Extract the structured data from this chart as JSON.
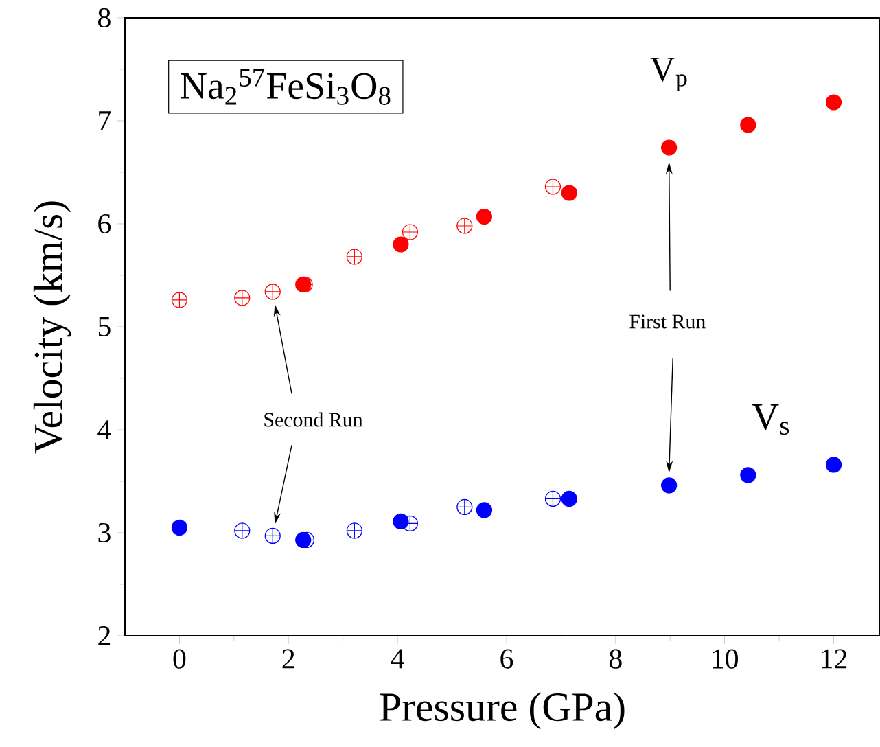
{
  "chart_data": {
    "type": "scatter",
    "title": "Na$_{2}$$^{57}$FeSi$_{3}$O$_{8}$",
    "xlabel": "Pressure (GPa)",
    "ylabel": "Velocity (km/s)",
    "xlim": [
      -1,
      12.85
    ],
    "ylim": [
      2,
      8
    ],
    "xticks": [
      0,
      2,
      4,
      6,
      8,
      10,
      12
    ],
    "yticks": [
      2,
      3,
      4,
      5,
      6,
      7,
      8
    ],
    "annotations": [
      "V$_{p}$",
      "V$_{s}$",
      "First Run",
      "Second Run"
    ],
    "series": [
      {
        "color": "#ff0000",
        "marker": "circle",
        "x": [
          2.27,
          4.06,
          5.59,
          7.15,
          8.98,
          10.43,
          12.0
        ],
        "values": [
          5.41,
          5.8,
          6.07,
          6.3,
          6.74,
          6.96,
          7.18
        ]
      },
      {
        "color": "#ff0000",
        "marker": "cross",
        "x": [
          0,
          1.15,
          1.71,
          2.3,
          3.21,
          4.23,
          5.23,
          6.85
        ],
        "values": [
          5.26,
          5.28,
          5.34,
          5.41,
          5.68,
          5.92,
          5.98,
          6.36
        ]
      },
      {
        "color": "#0000ff",
        "marker": "circle",
        "x": [
          0,
          2.27,
          4.06,
          5.59,
          7.15,
          8.98,
          10.43,
          12.0
        ],
        "values": [
          3.05,
          2.93,
          3.11,
          3.22,
          3.33,
          3.46,
          3.56,
          3.66
        ]
      },
      {
        "color": "#0000ff",
        "marker": "cross",
        "x": [
          1.15,
          1.71,
          2.33,
          3.21,
          4.23,
          5.23,
          6.85
        ],
        "values": [
          3.02,
          2.97,
          2.93,
          3.02,
          3.09,
          3.25,
          3.33
        ]
      }
    ]
  }
}
